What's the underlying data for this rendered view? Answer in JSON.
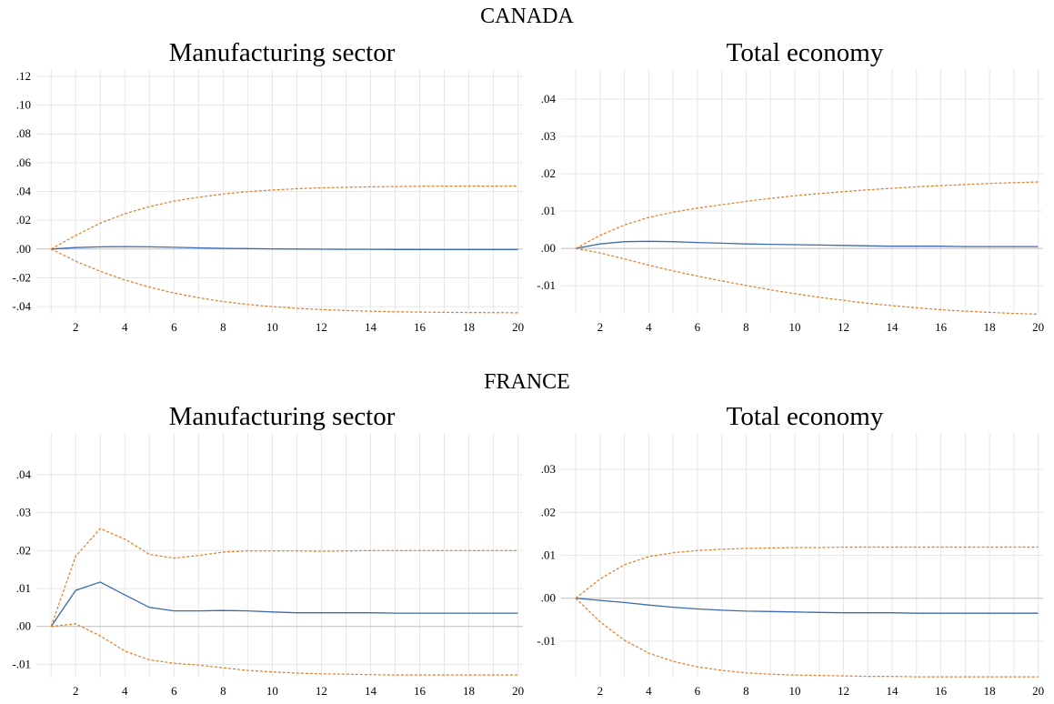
{
  "colors": {
    "estimate": "#3B6BB0",
    "band": "#E07B25",
    "grid": "#e6e6e6",
    "zero_line": "#bdbdbd"
  },
  "sections": [
    {
      "country": "CANADA"
    },
    {
      "country": "FRANCE"
    }
  ],
  "chart_data": [
    {
      "type": "line",
      "section": "CANADA",
      "title": "Manufacturing sector",
      "x": [
        1,
        2,
        3,
        4,
        5,
        6,
        7,
        8,
        9,
        10,
        11,
        12,
        13,
        14,
        15,
        16,
        17,
        18,
        19,
        20
      ],
      "xticks": [
        2,
        4,
        6,
        8,
        10,
        12,
        14,
        16,
        18,
        20
      ],
      "xlim": [
        0.4,
        20.2
      ],
      "ylim": [
        -0.045,
        0.125
      ],
      "yticks": [
        -0.04,
        -0.02,
        0,
        0.02,
        0.04,
        0.06,
        0.08,
        0.1,
        0.12
      ],
      "yticklabels": [
        "-.04",
        "-.02",
        ".00",
        ".02",
        ".04",
        ".06",
        ".08",
        ".10",
        ".12"
      ],
      "series": [
        {
          "role": "estimate",
          "style": "solid",
          "values": [
            0,
            0.001,
            0.0015,
            0.0017,
            0.0015,
            0.0012,
            0.0008,
            0.0005,
            0.0003,
            0.0001,
            0,
            -0.0001,
            -0.0002,
            -0.0002,
            -0.0003,
            -0.0003,
            -0.0004,
            -0.0004,
            -0.0004,
            -0.0004
          ]
        },
        {
          "role": "upper",
          "style": "dashed",
          "values": [
            0,
            0.0095,
            0.018,
            0.0245,
            0.0295,
            0.0333,
            0.036,
            0.0382,
            0.0398,
            0.041,
            0.0419,
            0.0425,
            0.0429,
            0.0432,
            0.0434,
            0.0436,
            0.0437,
            0.0437,
            0.0437,
            0.0437
          ]
        },
        {
          "role": "lower",
          "style": "dashed",
          "values": [
            0,
            -0.0085,
            -0.0155,
            -0.0215,
            -0.0265,
            -0.0305,
            -0.0338,
            -0.0365,
            -0.0385,
            -0.04,
            -0.0412,
            -0.042,
            -0.0427,
            -0.0432,
            -0.0436,
            -0.0438,
            -0.044,
            -0.0441,
            -0.0442,
            -0.0443
          ]
        }
      ]
    },
    {
      "type": "line",
      "section": "CANADA",
      "title": "Total economy",
      "x": [
        1,
        2,
        3,
        4,
        5,
        6,
        7,
        8,
        9,
        10,
        11,
        12,
        13,
        14,
        15,
        16,
        17,
        18,
        19,
        20
      ],
      "xticks": [
        2,
        4,
        6,
        8,
        10,
        12,
        14,
        16,
        18,
        20
      ],
      "xlim": [
        0.4,
        20.2
      ],
      "ylim": [
        -0.0175,
        0.048
      ],
      "yticks": [
        -0.01,
        0,
        0.01,
        0.02,
        0.03,
        0.04
      ],
      "yticklabels": [
        "-.01",
        ".00",
        ".01",
        ".02",
        ".03",
        ".04"
      ],
      "series": [
        {
          "role": "estimate",
          "style": "solid",
          "values": [
            0,
            0.0012,
            0.0018,
            0.0019,
            0.0018,
            0.0016,
            0.0014,
            0.0012,
            0.0011,
            0.001,
            0.0009,
            0.0008,
            0.0007,
            0.0006,
            0.0006,
            0.0006,
            0.0005,
            0.0005,
            0.0005,
            0.0005
          ]
        },
        {
          "role": "upper",
          "style": "dashed",
          "values": [
            0,
            0.0035,
            0.0063,
            0.0083,
            0.0097,
            0.0108,
            0.0117,
            0.0126,
            0.0134,
            0.0141,
            0.0147,
            0.0152,
            0.0157,
            0.0161,
            0.0165,
            0.0168,
            0.0171,
            0.0174,
            0.0176,
            0.0178
          ]
        },
        {
          "role": "lower",
          "style": "dashed",
          "values": [
            0,
            -0.0012,
            -0.0028,
            -0.0045,
            -0.006,
            -0.0074,
            -0.0087,
            -0.0099,
            -0.0111,
            -0.0121,
            -0.0131,
            -0.0139,
            -0.0147,
            -0.0153,
            -0.0159,
            -0.0164,
            -0.0168,
            -0.0171,
            -0.0174,
            -0.0176
          ]
        }
      ]
    },
    {
      "type": "line",
      "section": "FRANCE",
      "title": "Manufacturing sector",
      "x": [
        1,
        2,
        3,
        4,
        5,
        6,
        7,
        8,
        9,
        10,
        11,
        12,
        13,
        14,
        15,
        16,
        17,
        18,
        19,
        20
      ],
      "xticks": [
        2,
        4,
        6,
        8,
        10,
        12,
        14,
        16,
        18,
        20
      ],
      "xlim": [
        0.4,
        20.2
      ],
      "ylim": [
        -0.0135,
        0.051
      ],
      "yticks": [
        -0.01,
        0,
        0.01,
        0.02,
        0.03,
        0.04
      ],
      "yticklabels": [
        "-.01",
        ".00",
        ".01",
        ".02",
        ".03",
        ".04"
      ],
      "series": [
        {
          "role": "estimate",
          "style": "solid",
          "values": [
            0,
            0.0095,
            0.0117,
            0.0083,
            0.005,
            0.0041,
            0.0041,
            0.0042,
            0.0041,
            0.0038,
            0.0036,
            0.0036,
            0.0036,
            0.0036,
            0.0035,
            0.0035,
            0.0035,
            0.0035,
            0.0035,
            0.0035
          ]
        },
        {
          "role": "upper",
          "style": "dashed",
          "values": [
            0,
            0.0185,
            0.0258,
            0.023,
            0.019,
            0.018,
            0.0187,
            0.0196,
            0.0199,
            0.0199,
            0.0199,
            0.0198,
            0.0199,
            0.02,
            0.02,
            0.02,
            0.02,
            0.02,
            0.02,
            0.02
          ]
        },
        {
          "role": "lower",
          "style": "dashed",
          "values": [
            0,
            0.0007,
            -0.0025,
            -0.0065,
            -0.0088,
            -0.0097,
            -0.0102,
            -0.0109,
            -0.0116,
            -0.012,
            -0.0123,
            -0.0125,
            -0.0126,
            -0.0127,
            -0.0128,
            -0.0128,
            -0.0128,
            -0.0128,
            -0.0128,
            -0.0128
          ]
        }
      ]
    },
    {
      "type": "line",
      "section": "FRANCE",
      "title": "Total economy",
      "x": [
        1,
        2,
        3,
        4,
        5,
        6,
        7,
        8,
        9,
        10,
        11,
        12,
        13,
        14,
        15,
        16,
        17,
        18,
        19,
        20
      ],
      "xticks": [
        2,
        4,
        6,
        8,
        10,
        12,
        14,
        16,
        18,
        20
      ],
      "xlim": [
        0.4,
        20.2
      ],
      "ylim": [
        -0.0185,
        0.0385
      ],
      "yticks": [
        -0.01,
        0,
        0.01,
        0.02,
        0.03
      ],
      "yticklabels": [
        "-.01",
        ".00",
        ".01",
        ".02",
        ".03"
      ],
      "series": [
        {
          "role": "estimate",
          "style": "solid",
          "values": [
            0,
            -0.0005,
            -0.001,
            -0.0016,
            -0.0021,
            -0.0025,
            -0.0028,
            -0.003,
            -0.0031,
            -0.0032,
            -0.0033,
            -0.0034,
            -0.0034,
            -0.0034,
            -0.0035,
            -0.0035,
            -0.0035,
            -0.0035,
            -0.0035,
            -0.0035
          ]
        },
        {
          "role": "upper",
          "style": "dashed",
          "values": [
            0,
            0.0045,
            0.0078,
            0.0097,
            0.0106,
            0.0111,
            0.0114,
            0.0116,
            0.0117,
            0.0118,
            0.0118,
            0.0119,
            0.0119,
            0.0119,
            0.0119,
            0.0119,
            0.0119,
            0.0119,
            0.0119,
            0.0119
          ]
        },
        {
          "role": "lower",
          "style": "dashed",
          "values": [
            0,
            -0.0055,
            -0.0098,
            -0.0128,
            -0.0147,
            -0.016,
            -0.0168,
            -0.0174,
            -0.0177,
            -0.0179,
            -0.018,
            -0.0181,
            -0.0182,
            -0.0182,
            -0.0183,
            -0.0183,
            -0.0183,
            -0.0183,
            -0.0183,
            -0.0183
          ]
        }
      ]
    }
  ]
}
